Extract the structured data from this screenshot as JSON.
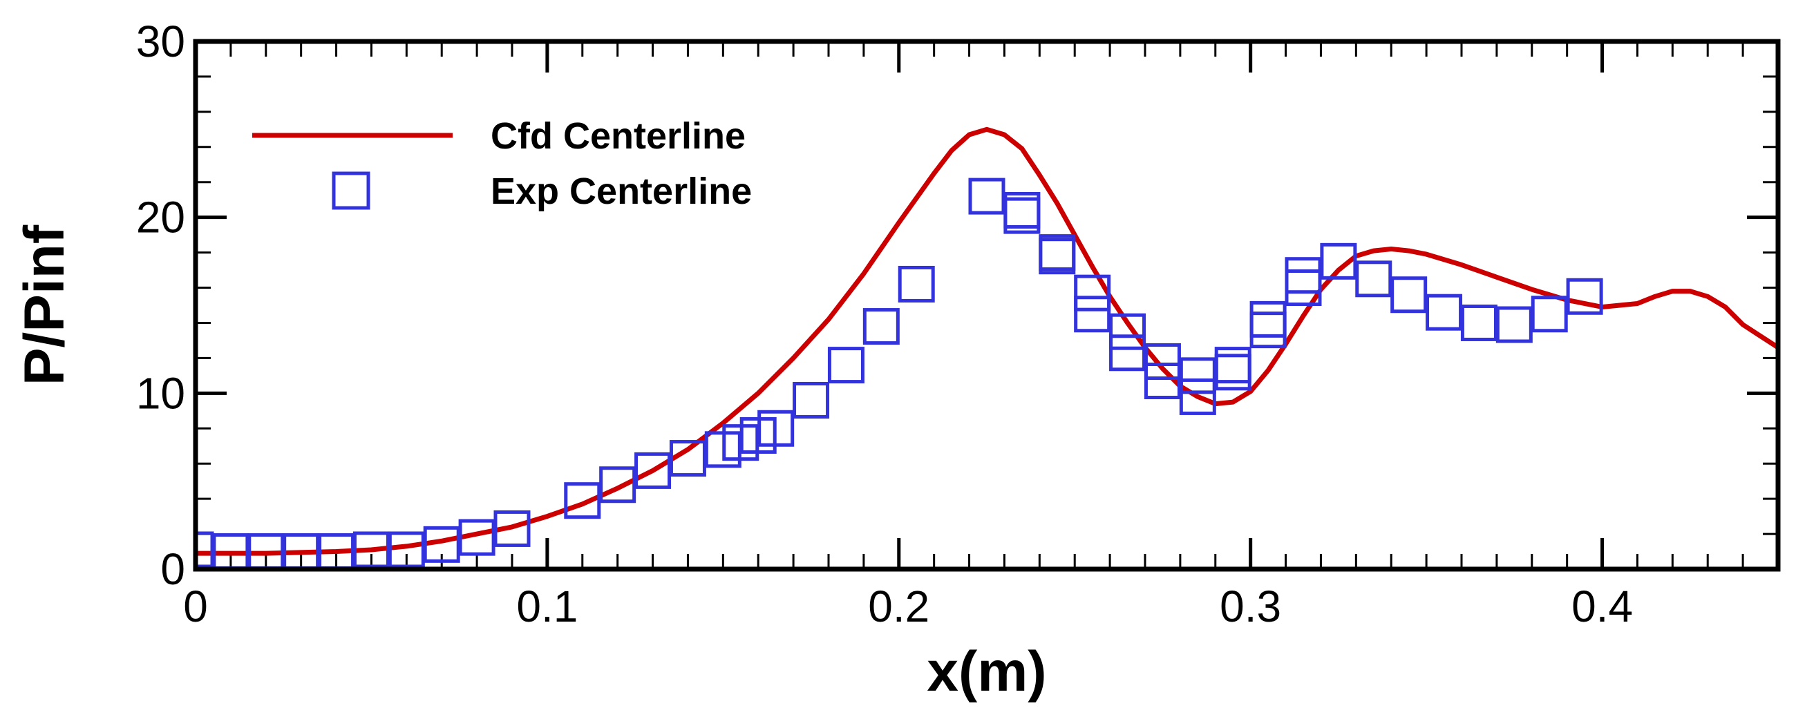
{
  "chart_data": {
    "type": "line",
    "title": "",
    "xlabel": "x(m)",
    "ylabel": "P/Pinf",
    "xlim": [
      0,
      0.45
    ],
    "ylim": [
      0,
      30
    ],
    "xticks": [
      0,
      0.1,
      0.2,
      0.3,
      0.4
    ],
    "xtick_labels": [
      "0",
      "0.1",
      "0.2",
      "0.3",
      "0.4"
    ],
    "yticks": [
      0,
      10,
      20,
      30
    ],
    "ytick_labels": [
      "0",
      "10",
      "20",
      "30"
    ],
    "grid": false,
    "legend_position": "top-left",
    "colors": {
      "cfd": "#cc0000",
      "exp": "#3333dd",
      "axis": "#000000"
    },
    "series": [
      {
        "name": "Cfd Centerline",
        "style": "line",
        "x": [
          0,
          0.02,
          0.04,
          0.05,
          0.06,
          0.07,
          0.08,
          0.09,
          0.1,
          0.11,
          0.12,
          0.13,
          0.14,
          0.15,
          0.16,
          0.17,
          0.18,
          0.19,
          0.2,
          0.21,
          0.215,
          0.22,
          0.225,
          0.23,
          0.235,
          0.24,
          0.245,
          0.25,
          0.255,
          0.26,
          0.265,
          0.27,
          0.275,
          0.28,
          0.285,
          0.29,
          0.295,
          0.3,
          0.305,
          0.31,
          0.315,
          0.32,
          0.325,
          0.33,
          0.335,
          0.34,
          0.345,
          0.35,
          0.36,
          0.37,
          0.38,
          0.39,
          0.4,
          0.41,
          0.415,
          0.42,
          0.425,
          0.43,
          0.435,
          0.44,
          0.45
        ],
        "values": [
          0.9,
          0.9,
          1.0,
          1.1,
          1.3,
          1.6,
          2.0,
          2.4,
          3.0,
          3.7,
          4.6,
          5.6,
          6.8,
          8.3,
          10.0,
          12.0,
          14.2,
          16.8,
          19.7,
          22.5,
          23.8,
          24.7,
          25.0,
          24.7,
          23.9,
          22.4,
          20.8,
          19.0,
          17.2,
          15.5,
          14.0,
          12.6,
          11.4,
          10.4,
          9.8,
          9.4,
          9.5,
          10.1,
          11.3,
          12.8,
          14.4,
          15.9,
          17.0,
          17.8,
          18.1,
          18.2,
          18.1,
          17.9,
          17.3,
          16.6,
          15.9,
          15.3,
          14.9,
          15.1,
          15.5,
          15.8,
          15.8,
          15.5,
          14.9,
          13.9,
          12.6
        ]
      },
      {
        "name": "Exp Centerline",
        "style": "marker-square",
        "x": [
          0,
          0.01,
          0.02,
          0.03,
          0.04,
          0.05,
          0.06,
          0.07,
          0.08,
          0.09,
          0.11,
          0.12,
          0.13,
          0.14,
          0.15,
          0.155,
          0.16,
          0.165,
          0.175,
          0.185,
          0.195,
          0.205,
          0.225,
          0.235,
          0.235,
          0.245,
          0.245,
          0.255,
          0.255,
          0.265,
          0.265,
          0.275,
          0.275,
          0.285,
          0.285,
          0.295,
          0.295,
          0.305,
          0.305,
          0.315,
          0.315,
          0.325,
          0.335,
          0.345,
          0.355,
          0.365,
          0.375,
          0.385,
          0.395
        ],
        "values": [
          1.1,
          1.0,
          1.0,
          1.0,
          1.0,
          1.1,
          1.1,
          1.4,
          1.8,
          2.3,
          3.9,
          4.8,
          5.6,
          6.3,
          6.8,
          7.2,
          7.6,
          8.0,
          9.6,
          11.6,
          13.8,
          16.2,
          21.2,
          20.4,
          20.1,
          18.0,
          17.8,
          15.7,
          14.5,
          13.5,
          12.3,
          11.8,
          10.7,
          11.0,
          9.8,
          11.6,
          11.2,
          14.2,
          13.6,
          16.7,
          16.0,
          17.5,
          16.5,
          15.6,
          14.6,
          14.0,
          13.9,
          14.5,
          15.5
        ]
      }
    ]
  }
}
